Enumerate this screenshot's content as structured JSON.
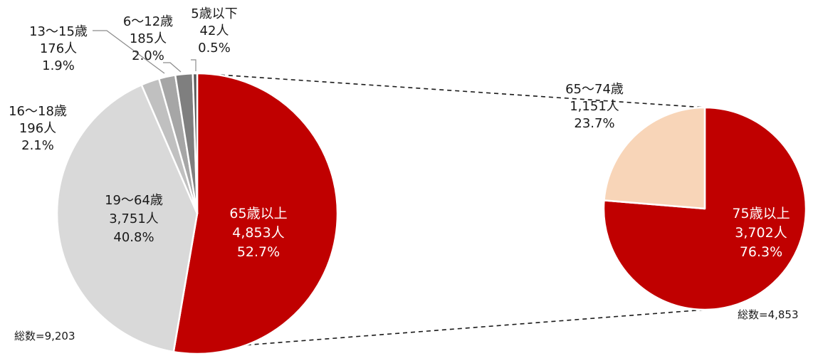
{
  "chart_data": [
    {
      "type": "pie",
      "total_label": "総数=9,203",
      "slices": [
        {
          "name": "65歳以上",
          "count": "4,853人",
          "percent": "52.7%",
          "value": 52.7,
          "color": "#c00000",
          "label_style": "inside-white"
        },
        {
          "name": "19〜64歳",
          "count": "3,751人",
          "percent": "40.8%",
          "value": 40.8,
          "color": "#d9d9d9",
          "label_style": "inside-dark"
        },
        {
          "name": "16〜18歳",
          "count": "196人",
          "percent": "2.1%",
          "value": 2.1,
          "color": "#c0c0c0",
          "label_style": "outside"
        },
        {
          "name": "13〜15歳",
          "count": "176人",
          "percent": "1.9%",
          "value": 1.9,
          "color": "#a6a6a6",
          "label_style": "outside"
        },
        {
          "name": "6〜12歳",
          "count": "185人",
          "percent": "2.0%",
          "value": 2.0,
          "color": "#7f7f7f",
          "label_style": "outside"
        },
        {
          "name": "5歳以下",
          "count": "42人",
          "percent": "0.5%",
          "value": 0.5,
          "color": "#595959",
          "label_style": "outside"
        }
      ]
    },
    {
      "type": "pie",
      "total_label": "総数=4,853",
      "slices": [
        {
          "name": "75歳以上",
          "count": "3,702人",
          "percent": "76.3%",
          "value": 76.3,
          "color": "#c00000",
          "label_style": "inside-white"
        },
        {
          "name": "65〜74歳",
          "count": "1,151人",
          "percent": "23.7%",
          "value": 23.7,
          "color": "#f8d5b8",
          "label_style": "outside"
        }
      ]
    }
  ]
}
